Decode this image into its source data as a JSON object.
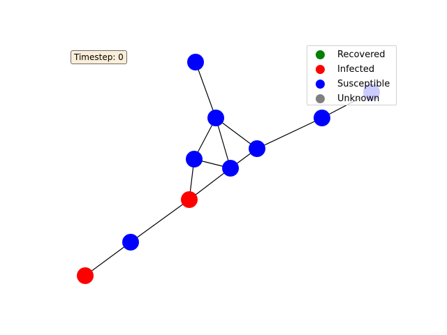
{
  "timestep_label": "Timestep: 0",
  "colors": {
    "recovered": "#008000",
    "infected": "#ff0000",
    "susceptible": "#0000ff",
    "unknown": "#808080",
    "edge": "#000000"
  },
  "legend": {
    "items": [
      {
        "label": "Recovered",
        "state": "recovered"
      },
      {
        "label": "Infected",
        "state": "infected"
      },
      {
        "label": "Susceptible",
        "state": "susceptible"
      },
      {
        "label": "Unknown",
        "state": "unknown"
      }
    ]
  },
  "graph": {
    "nodes": [
      {
        "id": "n1",
        "state": "susceptible"
      },
      {
        "id": "n2",
        "state": "susceptible"
      },
      {
        "id": "n3",
        "state": "susceptible"
      },
      {
        "id": "n4",
        "state": "susceptible"
      },
      {
        "id": "n5",
        "state": "susceptible"
      },
      {
        "id": "n6",
        "state": "susceptible"
      },
      {
        "id": "n7",
        "state": "infected"
      },
      {
        "id": "n8",
        "state": "susceptible"
      },
      {
        "id": "n9",
        "state": "infected"
      },
      {
        "id": "n10",
        "state": "susceptible"
      }
    ],
    "edges": [
      [
        "n1",
        "n2"
      ],
      [
        "n2",
        "n3"
      ],
      [
        "n2",
        "n4"
      ],
      [
        "n2",
        "n5"
      ],
      [
        "n4",
        "n5"
      ],
      [
        "n3",
        "n5"
      ],
      [
        "n3",
        "n6"
      ],
      [
        "n6",
        "n10"
      ],
      [
        "n4",
        "n7"
      ],
      [
        "n5",
        "n7"
      ],
      [
        "n7",
        "n8"
      ],
      [
        "n8",
        "n9"
      ]
    ]
  }
}
